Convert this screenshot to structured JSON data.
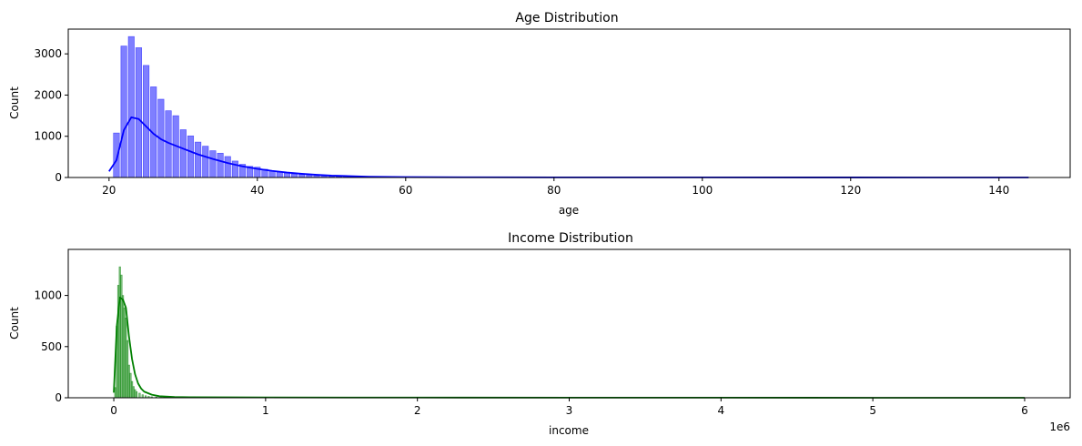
{
  "chart_data": [
    {
      "type": "bar",
      "title": "Age Distribution",
      "xlabel": "age",
      "ylabel": "Count",
      "xlim": [
        14.5,
        149.6
      ],
      "ylim": [
        0,
        3600
      ],
      "xticks": [
        20,
        40,
        60,
        80,
        100,
        120,
        140
      ],
      "yticks": [
        0,
        1000,
        2000,
        3000
      ],
      "grid": false,
      "legend": "none",
      "colors": {
        "bar": "#0000ff",
        "kde": "#0000ff"
      },
      "histogram": {
        "x": [
          21,
          22,
          23,
          24,
          25,
          26,
          27,
          28,
          29,
          30,
          31,
          32,
          33,
          34,
          35,
          36,
          37,
          38,
          39,
          40,
          41,
          42,
          43,
          44,
          45,
          46,
          47,
          48,
          49,
          50,
          51,
          52,
          53,
          54,
          55
        ],
        "counts": [
          1080,
          3190,
          3420,
          3150,
          2720,
          2200,
          1900,
          1620,
          1500,
          1160,
          1010,
          860,
          760,
          650,
          590,
          510,
          400,
          320,
          270,
          250,
          200,
          160,
          130,
          110,
          85,
          70,
          60,
          45,
          35,
          25,
          20,
          15,
          12,
          8,
          5
        ]
      },
      "kde": {
        "x": [
          20,
          21,
          22,
          23,
          24,
          25,
          26,
          27,
          28,
          30,
          32,
          34,
          36,
          38,
          40,
          42,
          44,
          46,
          48,
          50,
          55,
          60,
          70,
          80,
          100,
          120,
          144
        ],
        "y": [
          150,
          420,
          1150,
          1460,
          1420,
          1240,
          1060,
          930,
          840,
          700,
          560,
          450,
          350,
          270,
          210,
          160,
          120,
          90,
          65,
          45,
          20,
          10,
          5,
          3,
          2,
          1,
          0
        ]
      }
    },
    {
      "type": "bar",
      "title": "Income Distribution",
      "xlabel": "income",
      "ylabel": "Count",
      "x_scale_label": "1e6",
      "xlim": [
        -0.3,
        6.3
      ],
      "ylim": [
        0,
        1450
      ],
      "xticks": [
        0,
        1,
        2,
        3,
        4,
        5,
        6
      ],
      "yticks": [
        0,
        500,
        1000
      ],
      "grid": false,
      "legend": "none",
      "colors": {
        "bar": "#008000",
        "kde": "#008000"
      },
      "histogram": {
        "x": [
          0.01,
          0.02,
          0.03,
          0.04,
          0.05,
          0.06,
          0.07,
          0.08,
          0.09,
          0.1,
          0.11,
          0.12,
          0.13,
          0.14,
          0.15,
          0.17,
          0.19,
          0.21,
          0.23,
          0.25,
          0.28,
          0.31,
          0.35
        ],
        "counts": [
          100,
          700,
          1100,
          1280,
          1200,
          1000,
          880,
          780,
          560,
          320,
          240,
          160,
          110,
          80,
          60,
          45,
          30,
          20,
          14,
          10,
          7,
          5,
          3
        ]
      },
      "kde": {
        "x": [
          0.0,
          0.02,
          0.04,
          0.06,
          0.08,
          0.1,
          0.12,
          0.14,
          0.16,
          0.18,
          0.2,
          0.25,
          0.3,
          0.4,
          0.5,
          1.0,
          2.0,
          3.0,
          4.0,
          5.0,
          6.0
        ],
        "y": [
          50,
          700,
          980,
          960,
          880,
          600,
          380,
          230,
          140,
          90,
          60,
          30,
          15,
          8,
          5,
          3,
          2,
          1,
          1,
          0,
          0
        ]
      }
    }
  ]
}
